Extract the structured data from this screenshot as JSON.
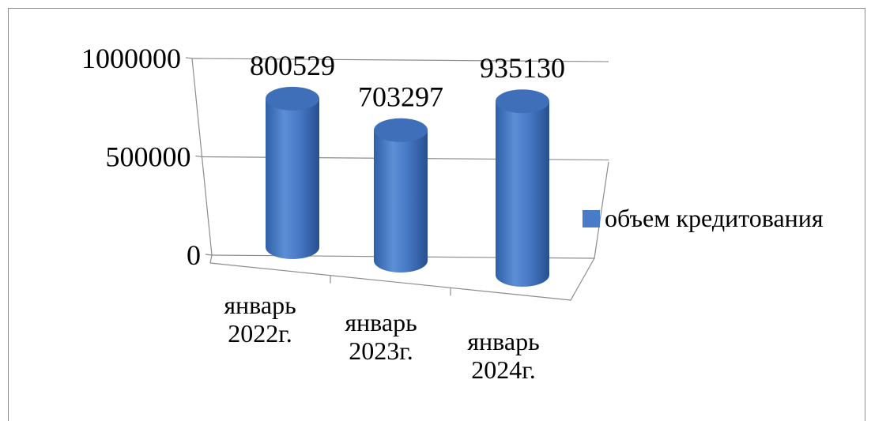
{
  "chart_data": {
    "type": "bar",
    "categories": [
      "январь 2022г.",
      "январь 2023г.",
      "январь 2024г."
    ],
    "category_lines": [
      [
        "январь",
        "2022г."
      ],
      [
        "январь",
        "2023г."
      ],
      [
        "январь",
        "2024г."
      ]
    ],
    "series": [
      {
        "name": "объем кредитования",
        "values": [
          800529,
          703297,
          935130
        ],
        "color": "#4a7bc8"
      }
    ],
    "data_labels": [
      "800529",
      "703297",
      "935130"
    ],
    "yticks": [
      "0",
      "500000",
      "1000000"
    ],
    "ylim": [
      0,
      1000000
    ],
    "grid": true,
    "legend_position": "right",
    "style": "3d-cylinder"
  }
}
